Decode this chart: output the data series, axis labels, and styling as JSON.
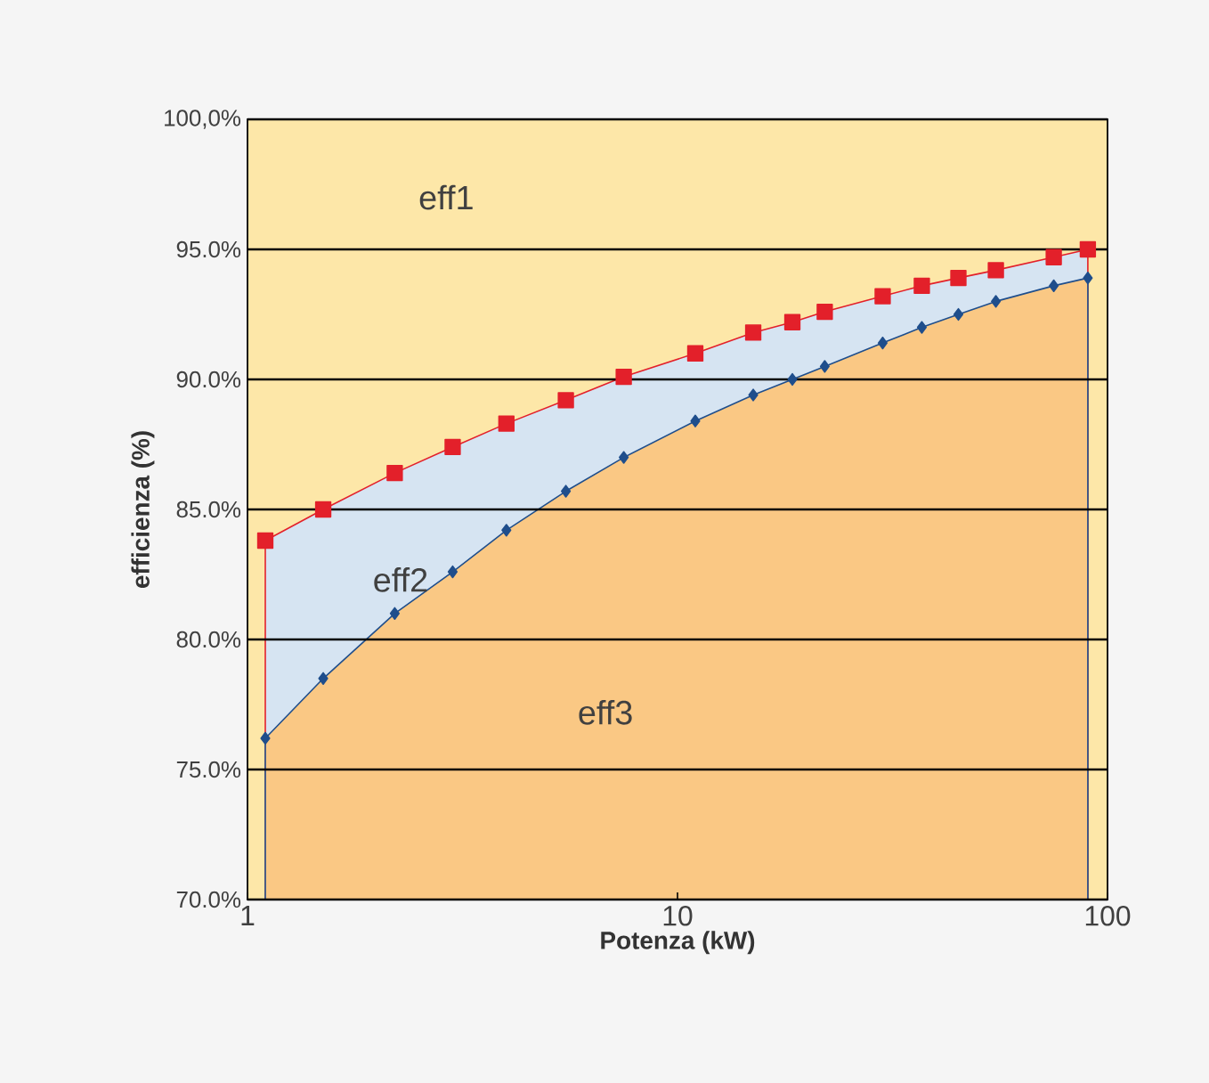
{
  "chart_data": {
    "type": "area",
    "xlabel": "Potenza (kW)",
    "ylabel": "efficienza (%)",
    "log": "x",
    "grid": "y",
    "bands": [
      {
        "axis": "y",
        "from": 70,
        "to": 100,
        "color": "#fde7a8"
      }
    ],
    "xlim": [
      1,
      100
    ],
    "xticks": [
      1,
      10,
      100
    ],
    "ylim": [
      70,
      100
    ],
    "yticks": [
      {
        "value": 70,
        "label": "70.0%"
      },
      {
        "value": 75,
        "label": "75.0%"
      },
      {
        "value": 80,
        "label": "80.0%"
      },
      {
        "value": 85,
        "label": "85.0%"
      },
      {
        "value": 90,
        "label": "90.0%"
      },
      {
        "value": 95,
        "label": "95.0%"
      },
      {
        "value": 100,
        "label": "100,0%"
      }
    ],
    "x": [
      1.1,
      1.5,
      2.2,
      3,
      4,
      5.5,
      7.5,
      11,
      15,
      18.5,
      22,
      30,
      37,
      45,
      55,
      75,
      90
    ],
    "series": [
      {
        "color": "#e3202a",
        "marker": "square",
        "values": [
          83.8,
          85.0,
          86.4,
          87.4,
          88.3,
          89.2,
          90.1,
          91.0,
          91.8,
          92.2,
          92.6,
          93.2,
          93.6,
          93.9,
          94.2,
          94.7,
          95.0
        ]
      },
      {
        "color": "#1f4e8c",
        "marker": "diamond",
        "values": [
          76.2,
          78.5,
          81.0,
          82.6,
          84.2,
          85.7,
          87.0,
          88.4,
          89.4,
          90.0,
          90.5,
          91.4,
          92.0,
          92.5,
          93.0,
          93.6,
          93.9
        ]
      }
    ],
    "annotations": [
      "eff1",
      "eff2",
      "eff3"
    ]
  }
}
